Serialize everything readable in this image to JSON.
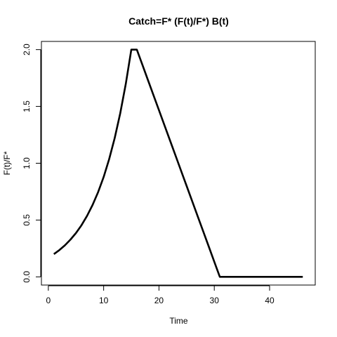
{
  "chart_data": {
    "type": "line",
    "title": "Catch=F* (F(t)/F*) B(t)",
    "xlabel": "Time",
    "ylabel": "F(t)/F*",
    "xlim": [
      -1.25,
      48.25
    ],
    "ylim": [
      -0.072,
      2.072
    ],
    "x_ticks": [
      0,
      10,
      20,
      30,
      40
    ],
    "y_ticks": [
      0.0,
      0.5,
      1.0,
      1.5,
      2.0
    ],
    "x_tick_labels": [
      "0",
      "10",
      "20",
      "30",
      "40"
    ],
    "y_tick_labels": [
      "0.0",
      "0.5",
      "1.0",
      "1.5",
      "2.0"
    ],
    "grid": false,
    "legend": "none",
    "line_color": "#000000",
    "series": [
      {
        "x": [
          1,
          2,
          3,
          4,
          5,
          6,
          7,
          8,
          9,
          10,
          11,
          12,
          13,
          14,
          15,
          16,
          17,
          18,
          19,
          20,
          21,
          22,
          23,
          24,
          25,
          26,
          27,
          28,
          29,
          30,
          31,
          32,
          33,
          34,
          35,
          36,
          37,
          38,
          39,
          40,
          41,
          42,
          43,
          44,
          45,
          46
        ],
        "values": [
          0.2,
          0.236,
          0.278,
          0.328,
          0.386,
          0.455,
          0.537,
          0.633,
          0.746,
          0.879,
          1.037,
          1.222,
          1.44,
          1.698,
          2.0,
          2.0,
          1.867,
          1.733,
          1.6,
          1.467,
          1.333,
          1.2,
          1.067,
          0.933,
          0.8,
          0.667,
          0.533,
          0.4,
          0.267,
          0.133,
          0.0,
          0.0,
          0.0,
          0.0,
          0.0,
          0.0,
          0.0,
          0.0,
          0.0,
          0.0,
          0.0,
          0.0,
          0.0,
          0.0,
          0.0,
          0.0
        ]
      }
    ]
  }
}
